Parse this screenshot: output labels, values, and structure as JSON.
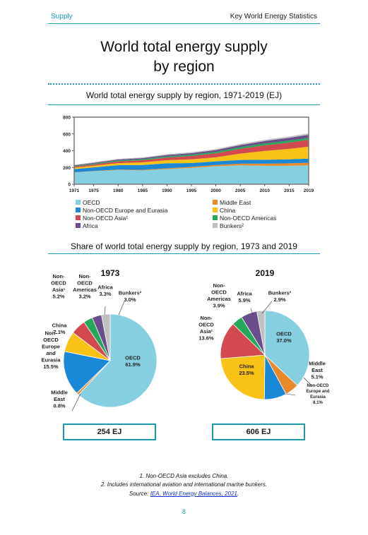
{
  "header": {
    "section": "Supply",
    "publication": "Key World Energy Statistics"
  },
  "page_title": [
    "World total energy supply",
    "by region"
  ],
  "colors": {
    "OECD": "#86cfe0",
    "Middle East": "#e8892a",
    "Non-OECD Europe and Eurasia": "#1a88d6",
    "China": "#f8c316",
    "Non-OECD Asia": "#d2494f",
    "Non-OECD Americas": "#26a85a",
    "Africa": "#6a4d8a",
    "Bunkers": "#c0c0c0"
  },
  "chart_data": [
    {
      "type": "area",
      "title": "World total energy supply by region, 1971-2019 (EJ)",
      "stacked": true,
      "ylim": [
        0,
        800
      ],
      "yticks": [
        0,
        200,
        400,
        600,
        800
      ],
      "xticks": [
        1971,
        1975,
        1980,
        1985,
        1990,
        1995,
        2000,
        2005,
        2010,
        2015,
        2019
      ],
      "x": [
        1971,
        1975,
        1980,
        1985,
        1990,
        1995,
        2000,
        2005,
        2010,
        2015,
        2019
      ],
      "legend_position": "bottom",
      "legend": [
        {
          "label": "OECD",
          "key": "OECD"
        },
        {
          "label": "Middle East",
          "key": "Middle East"
        },
        {
          "label": "Non-OECD Europe and Eurasia",
          "key": "Non-OECD Europe and Eurasia"
        },
        {
          "label": "China",
          "key": "China"
        },
        {
          "label": "Non-OECD Asia¹",
          "key": "Non-OECD Asia"
        },
        {
          "label": "Non-OECD Americas",
          "key": "Non-OECD Americas"
        },
        {
          "label": "Africa",
          "key": "Africa"
        },
        {
          "label": "Bunkers²",
          "key": "Bunkers"
        }
      ],
      "series": [
        {
          "key": "OECD",
          "values": [
            140,
            155,
            170,
            165,
            180,
            195,
            215,
            225,
            220,
            220,
            225
          ]
        },
        {
          "key": "Middle East",
          "values": [
            2,
            3,
            5,
            7,
            9,
            12,
            15,
            20,
            25,
            30,
            31
          ]
        },
        {
          "key": "Non-OECD Europe and Eurasia",
          "values": [
            38,
            43,
            52,
            57,
            60,
            46,
            43,
            45,
            47,
            47,
            49
          ]
        },
        {
          "key": "China",
          "values": [
            17,
            20,
            25,
            32,
            37,
            44,
            48,
            75,
            105,
            125,
            142
          ]
        },
        {
          "key": "Non-OECD Asia",
          "values": [
            12,
            15,
            20,
            25,
            32,
            40,
            48,
            57,
            67,
            75,
            82
          ]
        },
        {
          "key": "Non-OECD Americas",
          "values": [
            8,
            9,
            11,
            12,
            14,
            16,
            18,
            20,
            23,
            24,
            24
          ]
        },
        {
          "key": "Africa",
          "values": [
            8,
            10,
            12,
            14,
            16,
            18,
            20,
            24,
            28,
            33,
            36
          ]
        },
        {
          "key": "Bunkers",
          "values": [
            7,
            7,
            8,
            8,
            10,
            11,
            12,
            14,
            15,
            16,
            18
          ]
        }
      ]
    },
    {
      "type": "pie",
      "title": "1973",
      "total_label": "254 EJ",
      "slices": [
        {
          "key": "OECD",
          "value": 61.9,
          "label_lines": [
            "OECD",
            "61.9%"
          ]
        },
        {
          "key": "Middle East",
          "value": 0.8,
          "label_lines": [
            "Middle",
            "East",
            "0.8%"
          ]
        },
        {
          "key": "Non-OECD Europe and Eurasia",
          "value": 15.5,
          "label_lines": [
            "Non-",
            "OECD",
            "Europe",
            "and",
            "Eurasia",
            "15.5%"
          ]
        },
        {
          "key": "China",
          "value": 7.1,
          "label_lines": [
            "China",
            "7.1%"
          ]
        },
        {
          "key": "Non-OECD Asia",
          "value": 5.2,
          "label_lines": [
            "Non-",
            "OECD",
            "Asia¹",
            "5.2%"
          ]
        },
        {
          "key": "Non-OECD Americas",
          "value": 3.2,
          "label_lines": [
            "Non-",
            "OECD",
            "Americas",
            "3.2%"
          ]
        },
        {
          "key": "Africa",
          "value": 3.3,
          "label_lines": [
            "Africa",
            "3.3%"
          ]
        },
        {
          "key": "Bunkers",
          "value": 3.0,
          "label_lines": [
            "Bunkers²",
            "3.0%"
          ]
        }
      ]
    },
    {
      "type": "pie",
      "title": "2019",
      "total_label": "606 EJ",
      "slices": [
        {
          "key": "OECD",
          "value": 37.0,
          "label_lines": [
            "OECD",
            "37.0%"
          ]
        },
        {
          "key": "Middle East",
          "value": 5.1,
          "label_lines": [
            "Middle",
            "East",
            "5.1%"
          ]
        },
        {
          "key": "Non-OECD Europe and Eurasia",
          "value": 8.1,
          "label_lines": [
            "Non-OECD",
            "Europe and",
            "Eurasia",
            "8.1%"
          ]
        },
        {
          "key": "China",
          "value": 23.5,
          "label_lines": [
            "China",
            "23.5%"
          ]
        },
        {
          "key": "Non-OECD Asia",
          "value": 13.6,
          "label_lines": [
            "Non-",
            "OECD",
            "Asia¹",
            "13.6%"
          ]
        },
        {
          "key": "Non-OECD Americas",
          "value": 3.9,
          "label_lines": [
            "Non-",
            "OECD",
            "Americas",
            "3.9%"
          ]
        },
        {
          "key": "Africa",
          "value": 5.9,
          "label_lines": [
            "Africa",
            "5.9%"
          ]
        },
        {
          "key": "Bunkers",
          "value": 2.9,
          "label_lines": [
            "Bunkers²",
            "2.9%"
          ]
        }
      ]
    }
  ],
  "pie_section_title": "Share of world total energy supply by region, 1973 and 2019",
  "footnotes": {
    "note1": "1. Non-OECD Asia excludes China.",
    "note2": "2. Includes international aviation and international marine bunkers.",
    "source_prefix": "Source: ",
    "source_link": "IEA, World Energy Balances, 2021",
    "source_suffix": "."
  },
  "page_number": "8"
}
